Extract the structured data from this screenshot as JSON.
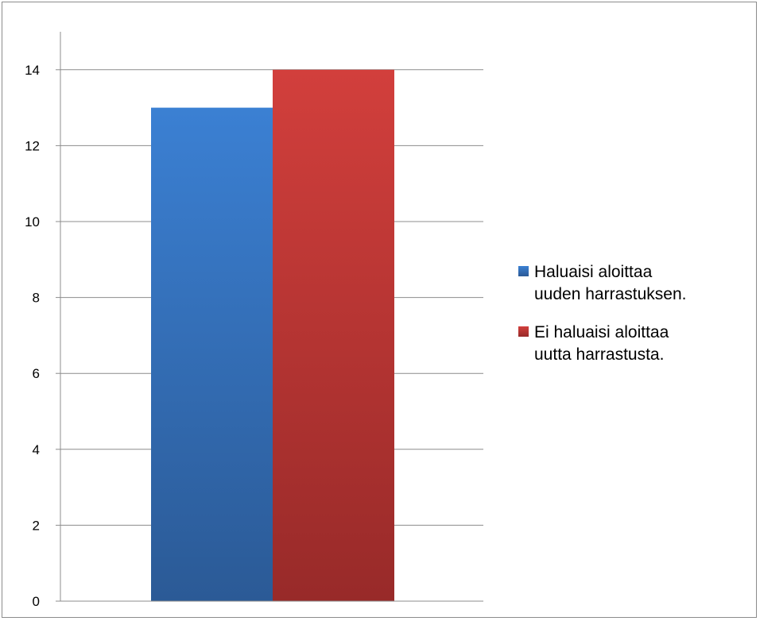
{
  "chart_data": {
    "type": "bar",
    "categories": [
      ""
    ],
    "series": [
      {
        "name": "Haluaisi aloittaa uuden harrastuksen.",
        "values": [
          13
        ],
        "color": "#3a78c9",
        "legend_lines": [
          "Haluaisi aloittaa",
          "uuden harrastuksen."
        ]
      },
      {
        "name": "Ei haluaisi aloittaa uutta harrastusta.",
        "values": [
          14
        ],
        "color": "#cc3b39",
        "legend_lines": [
          "Ei haluaisi aloittaa",
          "uutta harrastusta."
        ]
      }
    ],
    "ylim": [
      0,
      15
    ],
    "yticks": [
      "0",
      "2",
      "4",
      "6",
      "8",
      "10",
      "12",
      "14"
    ],
    "ytick_values": [
      0,
      2,
      4,
      6,
      8,
      10,
      12,
      14
    ],
    "grid": true,
    "legend_position": "right"
  }
}
